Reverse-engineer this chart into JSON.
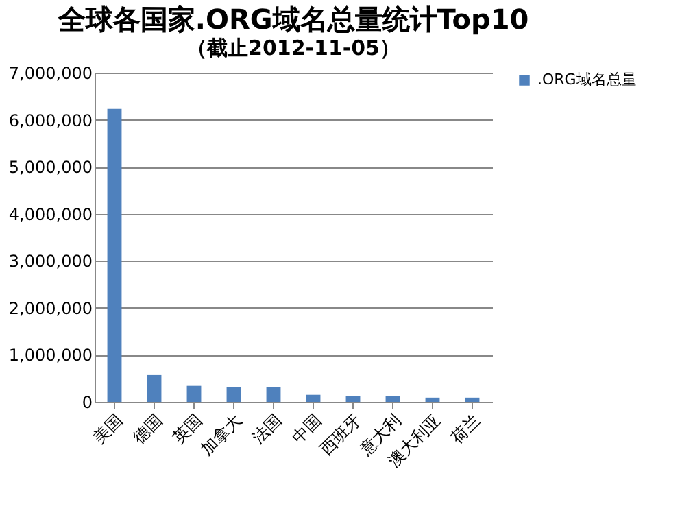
{
  "chart_data": {
    "type": "bar",
    "title": "全球各国家.ORG域名总量统计Top10",
    "subtitle": "（截止2012-11-05）",
    "categories": [
      "美国",
      "德国",
      "英国",
      "加拿大",
      "法国",
      "中国",
      "西班牙",
      "意大利",
      "澳大利亚",
      "荷兰"
    ],
    "series": [
      {
        "name": ".ORG域名总量",
        "color": "#4f81bd",
        "values": [
          6230000,
          570000,
          340000,
          320000,
          320000,
          150000,
          120000,
          120000,
          90000,
          90000
        ]
      }
    ],
    "ylim": [
      0,
      7000000
    ],
    "yticks": [
      0,
      {
        "value": 1000000,
        "label": "1,000,000"
      },
      {
        "value": 2000000,
        "label": "2,000,000"
      },
      {
        "value": 3000000,
        "label": "3,000,000"
      },
      {
        "value": 4000000,
        "label": "4,000,000"
      },
      {
        "value": 5000000,
        "label": "5,000,000"
      },
      {
        "value": 6000000,
        "label": "6,000,000"
      },
      {
        "value": 7000000,
        "label": "7,000,000"
      }
    ],
    "grid": "y",
    "legend": "right"
  }
}
